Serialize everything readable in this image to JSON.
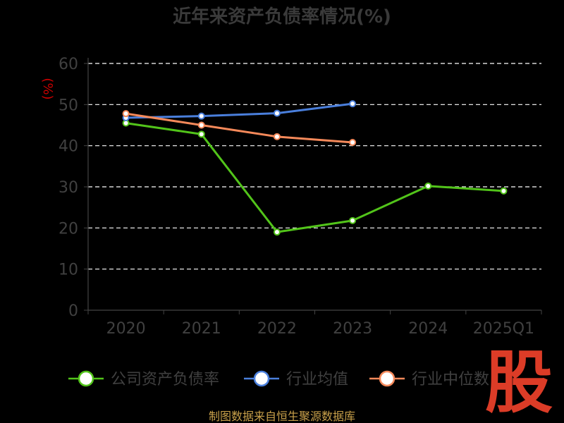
{
  "chart_data": {
    "type": "line",
    "title": "近年来资产负债率情况(%)",
    "ylabel": "(%)",
    "categories": [
      "2020",
      "2021",
      "2022",
      "2023",
      "2024",
      "2025Q1"
    ],
    "ylim": [
      0,
      60
    ],
    "yticks": [
      0,
      10,
      20,
      30,
      40,
      50,
      60
    ],
    "grid": true,
    "legend_position": "bottom",
    "series": [
      {
        "name": "公司资产负债率",
        "color": "#52c41a",
        "values": [
          45.5,
          42.8,
          19.0,
          21.8,
          30.2,
          29.0
        ]
      },
      {
        "name": "行业均值",
        "color": "#4a7fdc",
        "values": [
          46.8,
          47.2,
          47.9,
          50.2,
          null,
          null
        ]
      },
      {
        "name": "行业中位数",
        "color": "#f5895a",
        "values": [
          47.8,
          45.0,
          42.2,
          40.8,
          null,
          null
        ]
      }
    ]
  },
  "source": "制图数据来自恒生聚源数据库",
  "watermark": "股"
}
